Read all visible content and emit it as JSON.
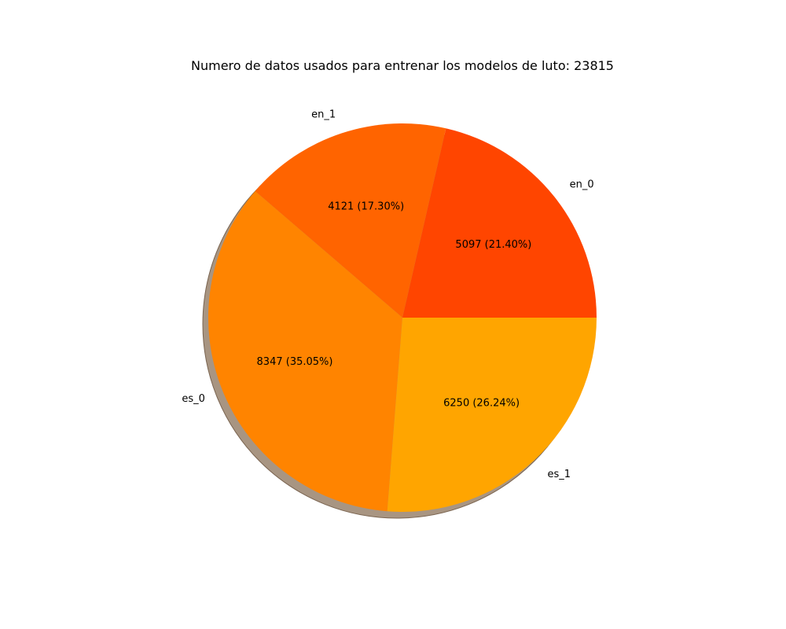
{
  "chart_data": {
    "type": "pie",
    "title": "Numero de datos usados para entrenar los modelos de luto: 23815",
    "shadow": true,
    "start_angle_deg": 0,
    "direction": "counterclockwise",
    "slices": [
      {
        "label": "en_0",
        "value": 5097,
        "autopct": "5097 (21.40%)",
        "color": "#ff4500"
      },
      {
        "label": "en_1",
        "value": 4121,
        "autopct": "4121 (17.30%)",
        "color": "#ff6400"
      },
      {
        "label": "es_0",
        "value": 8347,
        "autopct": "8347 (35.05%)",
        "color": "#ff8400"
      },
      {
        "label": "es_1",
        "value": 6250,
        "autopct": "6250 (26.24%)",
        "color": "#ffa500"
      }
    ],
    "shadow_color": "#a89582"
  }
}
